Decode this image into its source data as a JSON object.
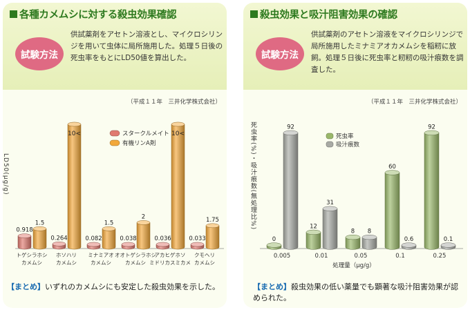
{
  "left": {
    "title": "各種カメムシに対する殺虫効果確認",
    "badge": "試験方法",
    "desc": "供試薬剤をアセトン溶液とし、マイクロシリンジを用いて虫体に局所施用した。処理５日後の死虫率をもとにLD50値を算出した。",
    "source": "（平成１１年　三井化学株式会社）",
    "summary_tag": "【まとめ】",
    "summary": "いずれのカメムシにも安定した殺虫効果を示した。"
  },
  "right": {
    "title": "殺虫効果と吸汁阻害効果の確認",
    "badge": "試験方法",
    "desc": "供試薬剤のアセトン溶液をマイクロシリンジで局所施用したミナミアオカメムシを稲籾に放飼。処理５日後に死虫率と籾籾の吸汁痕数を調査した。",
    "source": "（平成１１年　三井化学株式会社）",
    "summary_tag": "【まとめ】",
    "summary": "殺虫効果の低い薬量でも顕著な吸汁阻害効果が認められた。"
  },
  "chart_data": [
    {
      "type": "bar",
      "ylabel": "LD50（μg/g）",
      "categories": [
        "トゲシラホシカメムシ",
        "ホソハリカメムシ",
        "ミナミアオカメムシ",
        "オオトゲシラホシカメムシ",
        "アカヒゲホソミドリカスミカメ",
        "クモヘリカメムシ"
      ],
      "category_lines": [
        [
          "トゲシラホシ",
          "カメムシ"
        ],
        [
          "ホソハリ",
          "カメムシ"
        ],
        [
          "ミナミアオ",
          "カメムシ"
        ],
        [
          "オオトゲシラホシ",
          "カメムシ"
        ],
        [
          "アカヒゲホソ",
          "ミドリカスミカメ"
        ],
        [
          "クモヘリ",
          "カメムシ"
        ]
      ],
      "series": [
        {
          "name": "スタークルメイト",
          "values": [
            0.918,
            0.264,
            0.082,
            0.038,
            0.036,
            0.033
          ],
          "labels": [
            "0.918",
            "0.264",
            "0.082",
            "0.038",
            "0.036",
            "0.033"
          ],
          "color": "#e07a70"
        },
        {
          "name": "有機リンA剤",
          "values": [
            1.5,
            10,
            1.5,
            2,
            10,
            1.75
          ],
          "labels": [
            "1.5",
            "10<",
            "1.5",
            "2",
            "10<",
            "1.75"
          ],
          "color": "#f2a83b"
        }
      ],
      "ylim": [
        0,
        10
      ],
      "legend": "top-center",
      "grid": false
    },
    {
      "type": "bar",
      "xlabel": "処理量（μg/g）",
      "ylabel": "死虫率（%）・吸汁痕数（無処理比%）",
      "categories": [
        "0.005",
        "0.01",
        "0.05",
        "0.1",
        "0.25"
      ],
      "series": [
        {
          "name": "死虫率",
          "values": [
            0,
            12,
            8,
            60,
            92
          ],
          "labels": [
            "0",
            "12",
            "8",
            "60",
            "92"
          ],
          "color": "#9ab86a"
        },
        {
          "name": "吸汁痕数",
          "values": [
            92,
            31,
            8,
            0.6,
            0.1
          ],
          "labels": [
            "92",
            "31",
            "8",
            "0.6",
            "0.1"
          ],
          "color": "#a8aaa4"
        }
      ],
      "ylim": [
        0,
        100
      ],
      "legend": "top-center",
      "grid": false
    }
  ]
}
